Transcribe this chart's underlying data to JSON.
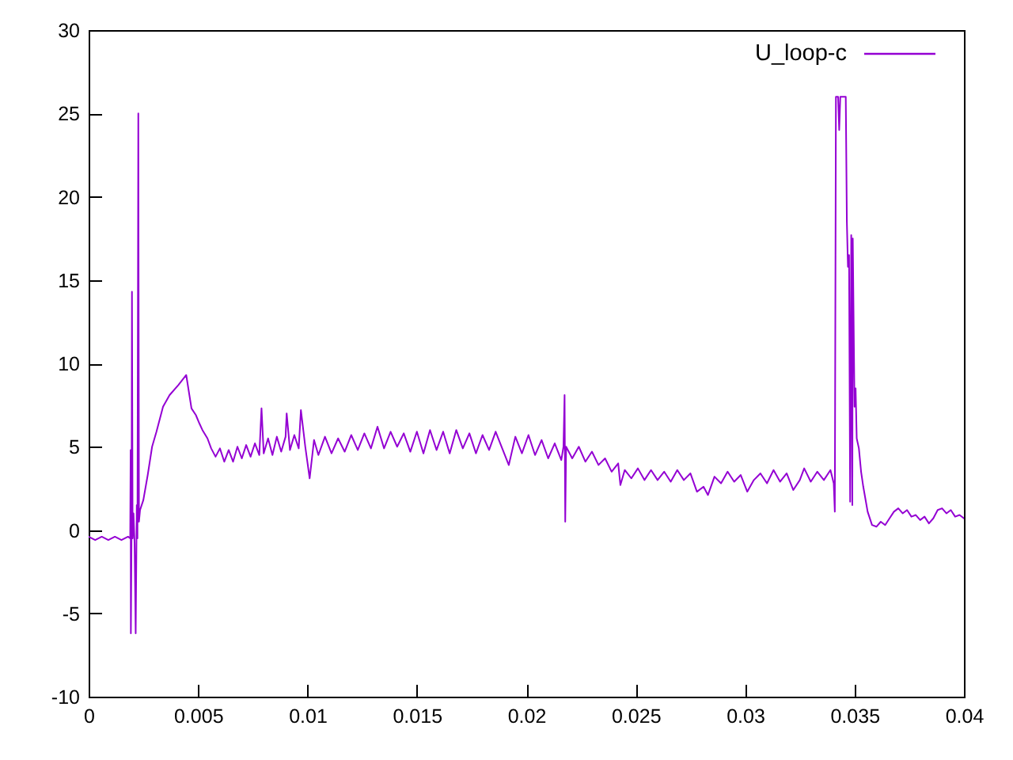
{
  "chart_data": {
    "type": "line",
    "legend": "top right",
    "xlim": [
      0,
      0.04
    ],
    "ylim": [
      -10,
      30
    ],
    "xticks": [
      0,
      0.005,
      0.01,
      0.015,
      0.02,
      0.025,
      0.03,
      0.035,
      0.04
    ],
    "yticks": [
      -10,
      -5,
      0,
      5,
      10,
      15,
      20,
      25,
      30
    ],
    "x": [
      0,
      0.0003,
      0.0006,
      0.0009,
      0.0012,
      0.0015,
      0.0018,
      0.0019,
      0.00192,
      0.00193,
      0.00196,
      0.00198,
      0.00201,
      0.00205,
      0.0021,
      0.00215,
      0.0022,
      0.00223,
      0.00227,
      0.0023,
      0.00235,
      0.0025,
      0.0027,
      0.0029,
      0.0031,
      0.0034,
      0.0037,
      0.0041,
      0.00446,
      0.0047,
      0.0049,
      0.00506,
      0.0052,
      0.00543,
      0.0056,
      0.0058,
      0.006,
      0.0062,
      0.0064,
      0.0066,
      0.0068,
      0.007,
      0.0072,
      0.0074,
      0.0076,
      0.0078,
      0.0079,
      0.008,
      0.0082,
      0.0084,
      0.0086,
      0.0088,
      0.009,
      0.00905,
      0.0092,
      0.0094,
      0.0096,
      0.0097,
      0.0099,
      0.0101,
      0.0103,
      0.0105,
      0.0108,
      0.0111,
      0.0114,
      0.0117,
      0.012,
      0.0123,
      0.0126,
      0.0129,
      0.0132,
      0.0135,
      0.0138,
      0.0141,
      0.0144,
      0.0147,
      0.015,
      0.0153,
      0.0156,
      0.0159,
      0.0162,
      0.0165,
      0.0168,
      0.0171,
      0.0174,
      0.0177,
      0.018,
      0.0183,
      0.0186,
      0.0189,
      0.0192,
      0.0195,
      0.0198,
      0.0201,
      0.0204,
      0.0207,
      0.021,
      0.0213,
      0.0216,
      0.0217,
      0.02175,
      0.02178,
      0.02182,
      0.0221,
      0.0224,
      0.0227,
      0.023,
      0.0233,
      0.0236,
      0.0239,
      0.0242,
      0.0243,
      0.0245,
      0.0248,
      0.0251,
      0.0254,
      0.0257,
      0.026,
      0.0263,
      0.0266,
      0.0269,
      0.0272,
      0.0275,
      0.0278,
      0.0281,
      0.0283,
      0.0286,
      0.0289,
      0.0292,
      0.0295,
      0.0298,
      0.0301,
      0.0304,
      0.0307,
      0.031,
      0.0313,
      0.0316,
      0.0319,
      0.0322,
      0.0325,
      0.0327,
      0.033,
      0.0333,
      0.0336,
      0.0339,
      0.03405,
      0.0341,
      0.03415,
      0.03425,
      0.0343,
      0.03435,
      0.0346,
      0.03465,
      0.0347,
      0.03475,
      0.0348,
      0.03485,
      0.0349,
      0.03492,
      0.035,
      0.03505,
      0.0351,
      0.0352,
      0.0353,
      0.0354,
      0.0356,
      0.0358,
      0.036,
      0.0362,
      0.0364,
      0.0366,
      0.0368,
      0.037,
      0.0372,
      0.0374,
      0.0376,
      0.0378,
      0.038,
      0.0382,
      0.0384,
      0.0386,
      0.0388,
      0.039,
      0.0392,
      0.0394,
      0.0396,
      0.0398,
      0.04
    ],
    "series": [
      {
        "name": "U_loop-c",
        "color": "#9400d3",
        "values": [
          -0.4,
          -0.6,
          -0.4,
          -0.6,
          -0.4,
          -0.6,
          -0.4,
          -0.5,
          4.8,
          -6.2,
          -0.3,
          14.3,
          -0.5,
          1.0,
          -0.8,
          -6.2,
          1.5,
          -0.5,
          25,
          0.5,
          1.2,
          1.8,
          3.3,
          5,
          5.9,
          7.4,
          8.1,
          8.7,
          9.3,
          7.3,
          6.9,
          6.4,
          6,
          5.5,
          4.9,
          4.4,
          4.9,
          4.1,
          4.8,
          4.1,
          5,
          4.3,
          5.1,
          4.4,
          5.2,
          4.5,
          7.3,
          4.6,
          5.5,
          4.5,
          5.6,
          4.7,
          5.6,
          7,
          4.8,
          5.7,
          4.9,
          7.2,
          5,
          3.1,
          5.4,
          4.5,
          5.6,
          4.6,
          5.5,
          4.7,
          5.7,
          4.8,
          5.8,
          4.9,
          6.2,
          4.9,
          5.9,
          5,
          5.8,
          4.7,
          5.9,
          4.6,
          6,
          4.8,
          5.9,
          4.6,
          6,
          4.9,
          5.8,
          4.6,
          5.7,
          4.8,
          5.9,
          4.9,
          3.9,
          5.6,
          4.6,
          5.7,
          4.5,
          5.4,
          4.3,
          5.2,
          4.2,
          5,
          8.1,
          0.5,
          5,
          4.3,
          5,
          4.1,
          4.7,
          3.9,
          4.3,
          3.5,
          4,
          2.7,
          3.6,
          3.1,
          3.7,
          3,
          3.6,
          3,
          3.5,
          2.9,
          3.6,
          3,
          3.4,
          2.3,
          2.6,
          2.1,
          3.2,
          2.8,
          3.5,
          2.9,
          3.3,
          2.3,
          3,
          3.4,
          2.8,
          3.6,
          2.9,
          3.4,
          2.4,
          3,
          3.7,
          2.9,
          3.5,
          3,
          3.6,
          2.8,
          1.1,
          26,
          26,
          24,
          26,
          26,
          18.5,
          15.8,
          16.5,
          1.7,
          17.7,
          1.5,
          17.5,
          7.4,
          8.5,
          5.5,
          4.9,
          3.5,
          2.6,
          1.1,
          0.3,
          0.2,
          0.5,
          0.3,
          0.7,
          1.1,
          1.3,
          1,
          1.2,
          0.8,
          0.9,
          0.6,
          0.8,
          0.4,
          0.7,
          1.2,
          1.3,
          1,
          1.2,
          0.8,
          0.9,
          0.7
        ]
      }
    ]
  }
}
